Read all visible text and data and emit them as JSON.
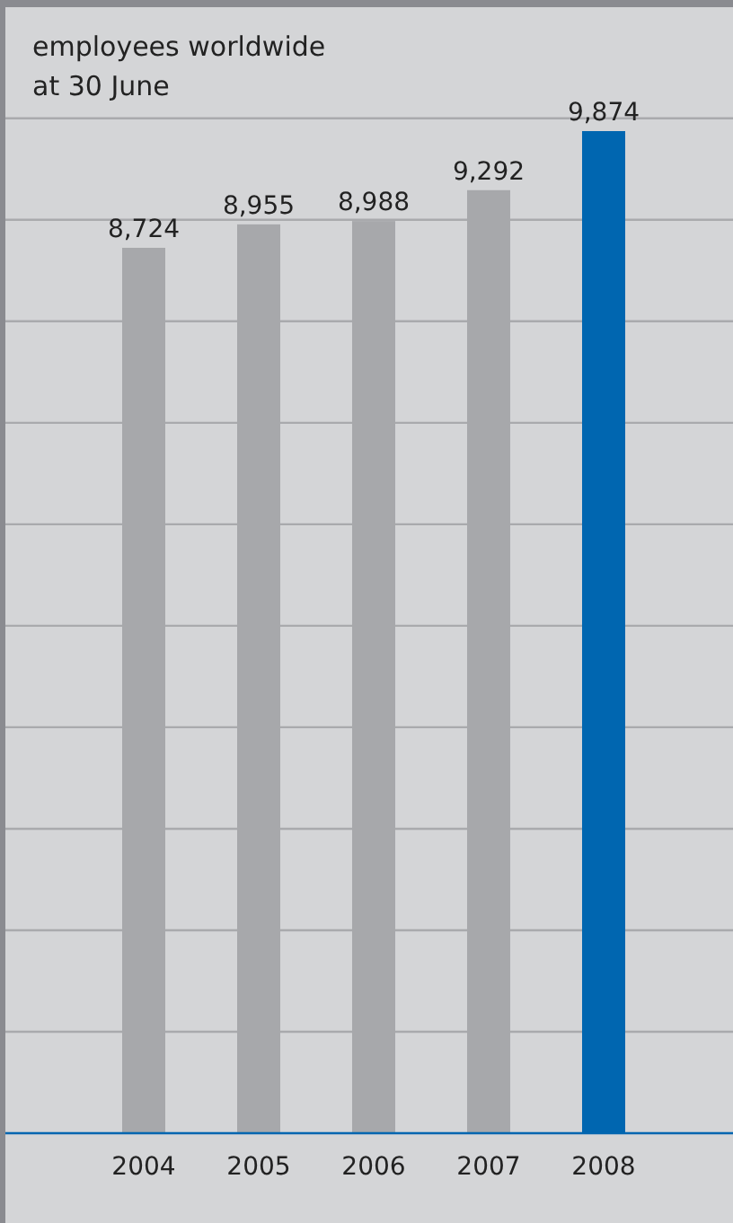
{
  "chart_data": {
    "type": "bar",
    "title": "employees worldwide\nat 30 June",
    "categories": [
      "2004",
      "2005",
      "2006",
      "2007",
      "2008"
    ],
    "values": [
      8724,
      8955,
      8988,
      9292,
      9874
    ],
    "value_labels": [
      "8,724",
      "8,955",
      "8,988",
      "9,292",
      "9,874"
    ],
    "colors": [
      "#a7a8ab",
      "#a7a8ab",
      "#a7a8ab",
      "#a7a8ab",
      "#0066b0"
    ],
    "grid": "y",
    "tick_labels": "x"
  }
}
